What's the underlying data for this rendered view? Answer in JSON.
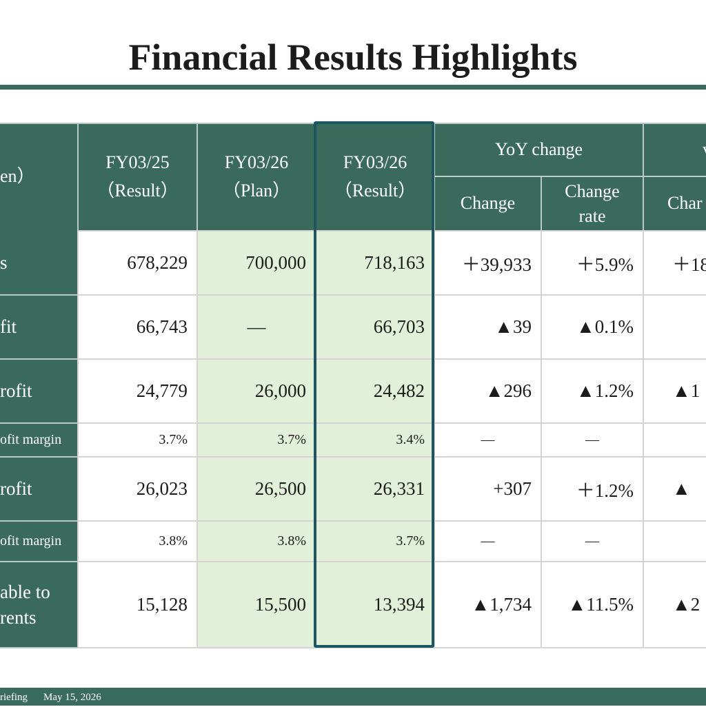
{
  "page": {
    "title": "Financial Results Highlights"
  },
  "table": {
    "header": {
      "unit_label": "en）",
      "fy25_result": [
        "FY03/25",
        "（Result）"
      ],
      "fy26_plan": [
        "FY03/26",
        "（Plan）"
      ],
      "fy26_result": [
        "FY03/26",
        "（Result）"
      ],
      "yoy_group": "YoY change",
      "yoy_change": "Change",
      "yoy_rate": [
        "Change",
        "rate"
      ],
      "vs_group": "v",
      "vs_change": "Char"
    },
    "rows": [
      {
        "label": [
          "s"
        ],
        "fy25": "678,229",
        "plan": "700,000",
        "result": "718,163",
        "yoy": "＋39,933",
        "rate": "＋5.9%",
        "vs": "＋18",
        "size": "big"
      },
      {
        "label": [
          "fit"
        ],
        "fy25": "66,743",
        "plan": "—",
        "result": "66,703",
        "yoy": "▲39",
        "rate": "▲0.1%",
        "vs": "",
        "size": "big"
      },
      {
        "label": [
          "rofit"
        ],
        "fy25": "24,779",
        "plan": "26,000",
        "result": "24,482",
        "yoy": "▲296",
        "rate": "▲1.2%",
        "vs": "▲1",
        "size": "big"
      },
      {
        "label": [
          "ofit margin"
        ],
        "fy25": "3.7%",
        "plan": "3.7%",
        "result": "3.4%",
        "yoy": "—",
        "rate": "—",
        "vs": "",
        "size": "small"
      },
      {
        "label": [
          "rofit"
        ],
        "fy25": "26,023",
        "plan": "26,500",
        "result": "26,331",
        "yoy": "+307",
        "rate": "＋1.2%",
        "vs": "▲",
        "size": "big"
      },
      {
        "label": [
          "ofit margin"
        ],
        "fy25": "3.8%",
        "plan": "3.8%",
        "result": "3.7%",
        "yoy": "—",
        "rate": "—",
        "vs": "",
        "size": "small"
      },
      {
        "label": [
          "able to",
          "rents"
        ],
        "fy25": "15,128",
        "plan": "15,500",
        "result": "13,394",
        "yoy": "▲1,734",
        "rate": "▲11.5%",
        "vs": "▲2",
        "size": "big"
      }
    ]
  },
  "footer": {
    "left": "riefing",
    "date": "May 15, 2026"
  },
  "colors": {
    "header_green": "#396a5c",
    "plan_fill": "#e3f0d9",
    "highlight_border": "#1d5560"
  }
}
